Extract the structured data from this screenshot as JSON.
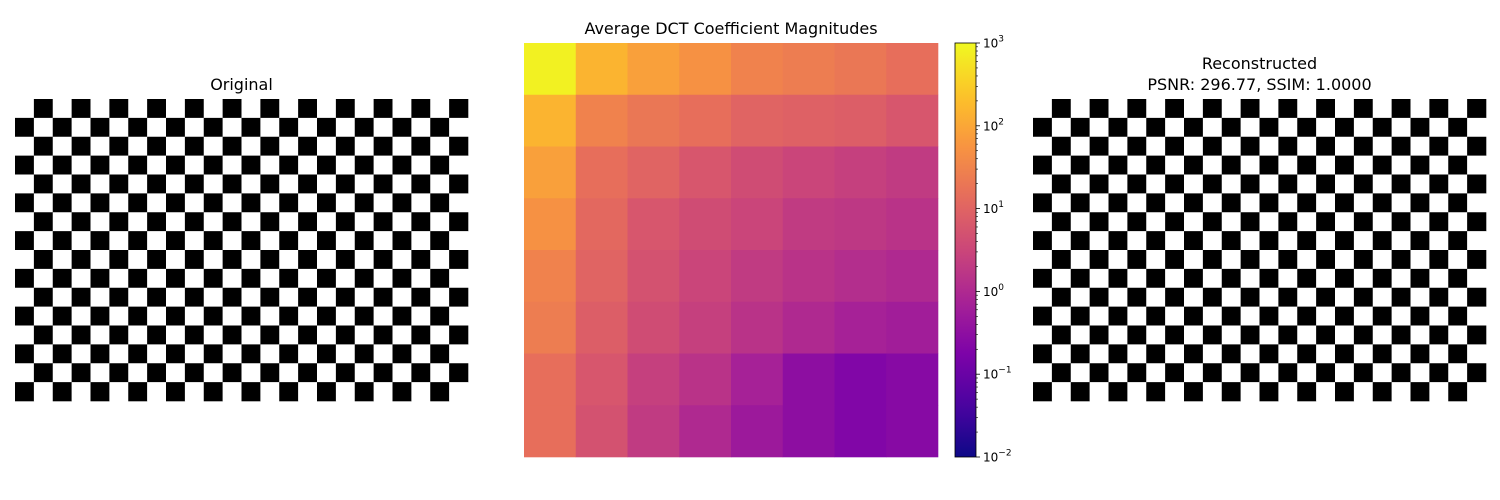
{
  "panels": {
    "original_title": "Original",
    "heatmap_title": "Average DCT Coefficient Magnitudes",
    "reconstructed_title_line1": "Reconstructed",
    "reconstructed_title_line2": "PSNR: 296.77, SSIM: 1.0000"
  },
  "checkerboard": {
    "cols": 24,
    "rows": 16,
    "top_left_is_white": true,
    "colors": [
      "#ffffff",
      "#000000"
    ]
  },
  "chart_data": {
    "type": "heatmap",
    "title": "Average DCT Coefficient Magnitudes",
    "rows": 8,
    "cols": 8,
    "scale": "log",
    "colormap": "plasma",
    "vlim": [
      0.01,
      1000
    ],
    "colorbar_ticks": [
      {
        "value": 0.01,
        "base": "10",
        "exp": "−2"
      },
      {
        "value": 0.1,
        "base": "10",
        "exp": "−1"
      },
      {
        "value": 1,
        "base": "10",
        "exp": "0"
      },
      {
        "value": 10,
        "base": "10",
        "exp": "1"
      },
      {
        "value": 100,
        "base": "10",
        "exp": "2"
      },
      {
        "value": 1000,
        "base": "10",
        "exp": "3"
      }
    ],
    "values": [
      [
        800,
        150,
        80,
        50,
        30,
        25,
        20,
        15
      ],
      [
        150,
        30,
        20,
        15,
        10,
        9,
        8,
        6
      ],
      [
        80,
        15,
        10,
        6,
        4,
        3,
        2.5,
        2
      ],
      [
        50,
        12,
        6,
        4,
        3,
        2,
        1.8,
        1.5
      ],
      [
        30,
        10,
        5,
        3,
        2,
        1.5,
        1.2,
        1
      ],
      [
        25,
        8,
        4,
        2.5,
        1.5,
        1,
        0.7,
        0.6
      ],
      [
        15,
        6,
        2.5,
        1.5,
        0.7,
        0.3,
        0.2,
        0.25
      ],
      [
        15,
        5,
        2,
        1,
        0.5,
        0.3,
        0.2,
        0.25
      ]
    ]
  }
}
